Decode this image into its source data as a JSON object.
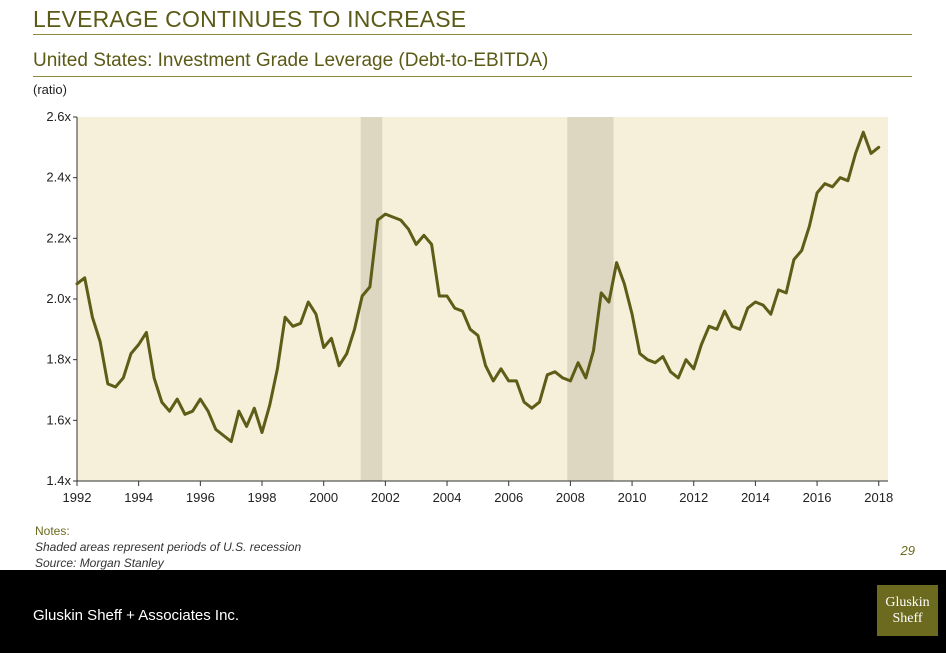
{
  "slide": {
    "title": "LEVERAGE CONTINUES TO INCREASE",
    "page_number": "29"
  },
  "chart_data": {
    "type": "line",
    "title": "United States: Investment Grade Leverage (Debt-to-EBITDA)",
    "ylabel": "(ratio)",
    "xlabel": "",
    "xlim": [
      1992,
      2018.3
    ],
    "ylim": [
      1.4,
      2.6
    ],
    "x_ticks": [
      1992,
      1994,
      1996,
      1998,
      2000,
      2002,
      2004,
      2006,
      2008,
      2010,
      2012,
      2014,
      2016,
      2018
    ],
    "x_tick_labels": [
      "1992",
      "1994",
      "1996",
      "1998",
      "2000",
      "2002",
      "2004",
      "2006",
      "2008",
      "2010",
      "2012",
      "2014",
      "2016",
      "2018"
    ],
    "y_ticks": [
      1.4,
      1.6,
      1.8,
      2.0,
      2.2,
      2.4,
      2.6
    ],
    "y_tick_labels": [
      "1.4x",
      "1.6x",
      "1.8x",
      "2.0x",
      "2.2x",
      "2.4x",
      "2.6x"
    ],
    "grid": false,
    "recessions": [
      {
        "start": 2001.2,
        "end": 2001.9
      },
      {
        "start": 2007.9,
        "end": 2009.4
      }
    ],
    "colors": {
      "line": "#5e5c17",
      "plot_background": "#f6efd9",
      "recession": "#ddd6c1",
      "axis": "#333333"
    },
    "series": [
      {
        "name": "",
        "points": [
          [
            1992.0,
            2.05
          ],
          [
            1992.25,
            2.07
          ],
          [
            1992.5,
            1.94
          ],
          [
            1992.75,
            1.86
          ],
          [
            1993.0,
            1.72
          ],
          [
            1993.25,
            1.71
          ],
          [
            1993.5,
            1.74
          ],
          [
            1993.75,
            1.82
          ],
          [
            1994.0,
            1.85
          ],
          [
            1994.25,
            1.89
          ],
          [
            1994.5,
            1.74
          ],
          [
            1994.75,
            1.66
          ],
          [
            1995.0,
            1.63
          ],
          [
            1995.25,
            1.67
          ],
          [
            1995.5,
            1.62
          ],
          [
            1995.75,
            1.63
          ],
          [
            1996.0,
            1.67
          ],
          [
            1996.25,
            1.63
          ],
          [
            1996.5,
            1.57
          ],
          [
            1996.75,
            1.55
          ],
          [
            1997.0,
            1.53
          ],
          [
            1997.25,
            1.63
          ],
          [
            1997.5,
            1.58
          ],
          [
            1997.75,
            1.64
          ],
          [
            1998.0,
            1.56
          ],
          [
            1998.25,
            1.65
          ],
          [
            1998.5,
            1.77
          ],
          [
            1998.75,
            1.94
          ],
          [
            1999.0,
            1.91
          ],
          [
            1999.25,
            1.92
          ],
          [
            1999.5,
            1.99
          ],
          [
            1999.75,
            1.95
          ],
          [
            2000.0,
            1.84
          ],
          [
            2000.25,
            1.87
          ],
          [
            2000.5,
            1.78
          ],
          [
            2000.75,
            1.82
          ],
          [
            2001.0,
            1.9
          ],
          [
            2001.25,
            2.01
          ],
          [
            2001.5,
            2.04
          ],
          [
            2001.75,
            2.26
          ],
          [
            2002.0,
            2.28
          ],
          [
            2002.25,
            2.27
          ],
          [
            2002.5,
            2.26
          ],
          [
            2002.75,
            2.23
          ],
          [
            2003.0,
            2.18
          ],
          [
            2003.25,
            2.21
          ],
          [
            2003.5,
            2.18
          ],
          [
            2003.75,
            2.01
          ],
          [
            2004.0,
            2.01
          ],
          [
            2004.25,
            1.97
          ],
          [
            2004.5,
            1.96
          ],
          [
            2004.75,
            1.9
          ],
          [
            2005.0,
            1.88
          ],
          [
            2005.25,
            1.78
          ],
          [
            2005.5,
            1.73
          ],
          [
            2005.75,
            1.77
          ],
          [
            2006.0,
            1.73
          ],
          [
            2006.25,
            1.73
          ],
          [
            2006.5,
            1.66
          ],
          [
            2006.75,
            1.64
          ],
          [
            2007.0,
            1.66
          ],
          [
            2007.25,
            1.75
          ],
          [
            2007.5,
            1.76
          ],
          [
            2007.75,
            1.74
          ],
          [
            2008.0,
            1.73
          ],
          [
            2008.25,
            1.79
          ],
          [
            2008.5,
            1.74
          ],
          [
            2008.75,
            1.83
          ],
          [
            2009.0,
            2.02
          ],
          [
            2009.25,
            1.99
          ],
          [
            2009.5,
            2.12
          ],
          [
            2009.75,
            2.05
          ],
          [
            2010.0,
            1.95
          ],
          [
            2010.25,
            1.82
          ],
          [
            2010.5,
            1.8
          ],
          [
            2010.75,
            1.79
          ],
          [
            2011.0,
            1.81
          ],
          [
            2011.25,
            1.76
          ],
          [
            2011.5,
            1.74
          ],
          [
            2011.75,
            1.8
          ],
          [
            2012.0,
            1.77
          ],
          [
            2012.25,
            1.85
          ],
          [
            2012.5,
            1.91
          ],
          [
            2012.75,
            1.9
          ],
          [
            2013.0,
            1.96
          ],
          [
            2013.25,
            1.91
          ],
          [
            2013.5,
            1.9
          ],
          [
            2013.75,
            1.97
          ],
          [
            2014.0,
            1.99
          ],
          [
            2014.25,
            1.98
          ],
          [
            2014.5,
            1.95
          ],
          [
            2014.75,
            2.03
          ],
          [
            2015.0,
            2.02
          ],
          [
            2015.25,
            2.13
          ],
          [
            2015.5,
            2.16
          ],
          [
            2015.75,
            2.24
          ],
          [
            2016.0,
            2.35
          ],
          [
            2016.25,
            2.38
          ],
          [
            2016.5,
            2.37
          ],
          [
            2016.75,
            2.4
          ],
          [
            2017.0,
            2.39
          ],
          [
            2017.25,
            2.48
          ],
          [
            2017.5,
            2.55
          ],
          [
            2017.75,
            2.48
          ],
          [
            2018.0,
            2.5
          ]
        ]
      }
    ]
  },
  "notes": {
    "heading": "Notes:",
    "lines": [
      "Shaded areas represent periods of U.S. recession",
      "Source: Morgan Stanley"
    ]
  },
  "footer": {
    "company": "Gluskin Sheff + Associates Inc.",
    "logo_line1": "Gluskin",
    "logo_line2": "Sheff"
  }
}
